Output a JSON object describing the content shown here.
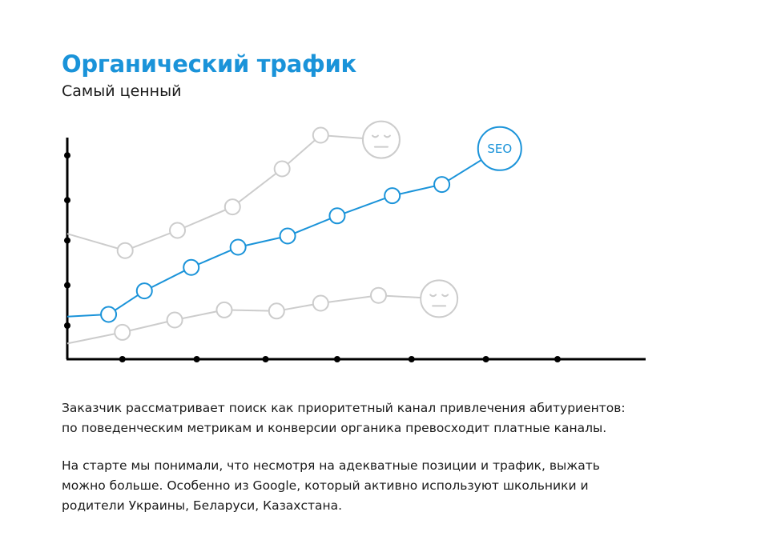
{
  "header": {
    "title": "Органический трафик",
    "subtitle": "Самый ценный"
  },
  "text": {
    "p1_line1": "Заказчик рассматривает поиск как приоритетный канал привлечения абитуриентов:",
    "p1_line2": "по поведенческим метрикам и конверсии органика превосходит платные каналы.",
    "p2_line1": "На старте мы понимали, что несмотря на адекватные позиции и трафик, выжать",
    "p2_line2": "можно больше. Особенно из Google, который активно используют школьники и",
    "p2_line3": "родители Украины, Беларуси, Казахстана."
  },
  "colors": {
    "accent": "#1a93d9",
    "muted": "#cccccc",
    "axis": "#000000"
  },
  "chart_data": {
    "type": "line",
    "title": "",
    "xlabel": "",
    "ylabel": "",
    "xlim": [
      0,
      10.5
    ],
    "ylim": [
      0,
      10
    ],
    "x_ticks": [
      1,
      2.35,
      3.6,
      4.9,
      6.25,
      7.6,
      8.9
    ],
    "y_ticks": [
      1.5,
      3.3,
      5.3,
      7.1,
      9.1
    ],
    "series": [
      {
        "name": "upper",
        "color": "muted",
        "start": [
          0,
          5.6
        ],
        "points": [
          [
            1.05,
            4.85
          ],
          [
            2.0,
            5.75
          ],
          [
            3.0,
            6.8
          ],
          [
            3.9,
            8.5
          ],
          [
            4.6,
            10.0
          ]
        ],
        "end_marker": {
          "point": [
            5.7,
            9.8
          ],
          "icon": "sad-face-icon"
        }
      },
      {
        "name": "SEO",
        "label": "SEO",
        "color": "accent",
        "start": [
          0,
          1.9
        ],
        "points": [
          [
            0.75,
            2.0
          ],
          [
            1.4,
            3.05
          ],
          [
            2.25,
            4.1
          ],
          [
            3.1,
            5.0
          ],
          [
            4.0,
            5.5
          ],
          [
            4.9,
            6.4
          ],
          [
            5.9,
            7.3
          ],
          [
            6.8,
            7.8
          ]
        ],
        "end_marker": {
          "point": [
            7.85,
            9.4
          ],
          "icon": "seo-bubble-icon"
        }
      },
      {
        "name": "lower",
        "color": "muted",
        "start": [
          0,
          0.7
        ],
        "points": [
          [
            1.0,
            1.2
          ],
          [
            1.95,
            1.75
          ],
          [
            2.85,
            2.2
          ],
          [
            3.8,
            2.15
          ],
          [
            4.6,
            2.5
          ],
          [
            5.65,
            2.85
          ]
        ],
        "end_marker": {
          "point": [
            6.75,
            2.7
          ],
          "icon": "sad-face-icon"
        }
      }
    ]
  }
}
